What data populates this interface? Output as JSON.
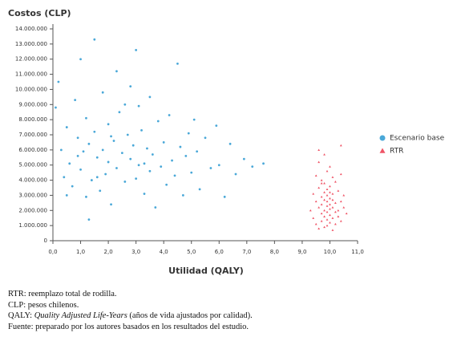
{
  "chart_data": {
    "type": "scatter",
    "title": "Costos (CLP)",
    "xlabel": "Utilidad (QALY)",
    "xlim": [
      0,
      11
    ],
    "ylim": [
      0,
      14000000
    ],
    "xticks": [
      {
        "value": 0,
        "label": "0,0"
      },
      {
        "value": 1,
        "label": "1,0"
      },
      {
        "value": 2,
        "label": "2,0"
      },
      {
        "value": 3,
        "label": "3,0"
      },
      {
        "value": 4,
        "label": "4,0"
      },
      {
        "value": 5,
        "label": "5,0"
      },
      {
        "value": 6,
        "label": "6,0"
      },
      {
        "value": 7,
        "label": "7,0"
      },
      {
        "value": 8,
        "label": "8,0"
      },
      {
        "value": 9,
        "label": "9,0"
      },
      {
        "value": 10,
        "label": "10,0"
      },
      {
        "value": 11,
        "label": "11,0"
      }
    ],
    "yticks": [
      0,
      {
        "value": 1000000,
        "label": "1.000.000"
      },
      {
        "value": 2000000,
        "label": "2.000.000"
      },
      {
        "value": 3000000,
        "label": "3.000.000"
      },
      {
        "value": 4000000,
        "label": "4.000.000"
      },
      {
        "value": 5000000,
        "label": "5.000.000"
      },
      {
        "value": 6000000,
        "label": "6.000.000"
      },
      {
        "value": 7000000,
        "label": "7.000.000"
      },
      {
        "value": 8000000,
        "label": "8.000.000"
      },
      {
        "value": 9000000,
        "label": "9.000.000"
      },
      {
        "value": 10000000,
        "label": "10.000.000"
      },
      {
        "value": 11000000,
        "label": "11.000.000"
      },
      {
        "value": 12000000,
        "label": "12.000.000"
      },
      {
        "value": 13000000,
        "label": "13.000.000"
      },
      {
        "value": 14000000,
        "label": "14.000.000"
      }
    ],
    "grid": false,
    "legend": "right",
    "series": [
      {
        "name": "Escenario base",
        "color": "#4aa8d8",
        "marker": "circle",
        "x": [
          0.1,
          0.2,
          0.3,
          0.4,
          0.5,
          0.6,
          0.7,
          0.8,
          0.9,
          1.0,
          1.0,
          1.1,
          1.2,
          1.2,
          1.3,
          1.4,
          1.5,
          1.5,
          1.6,
          1.7,
          1.8,
          1.8,
          1.9,
          2.0,
          2.0,
          2.1,
          2.2,
          2.3,
          2.3,
          2.4,
          2.5,
          2.6,
          2.7,
          2.8,
          2.8,
          2.9,
          3.0,
          3.1,
          3.1,
          3.2,
          3.3,
          3.4,
          3.5,
          3.5,
          3.6,
          3.7,
          3.8,
          3.9,
          4.0,
          4.1,
          4.2,
          4.3,
          4.4,
          4.5,
          4.6,
          4.7,
          4.8,
          4.9,
          5.0,
          5.1,
          5.2,
          5.3,
          5.5,
          5.7,
          5.9,
          6.0,
          6.2,
          6.4,
          6.6,
          6.9,
          7.2,
          7.6,
          0.5,
          1.3,
          2.6,
          3.0,
          0.9,
          1.6,
          2.1,
          3.3
        ],
        "values": [
          8800000,
          10500000,
          6000000,
          4200000,
          7500000,
          5100000,
          3600000,
          9300000,
          6800000,
          12000000,
          4700000,
          5900000,
          8100000,
          2900000,
          6400000,
          4000000,
          13300000,
          7200000,
          5500000,
          3300000,
          9800000,
          6000000,
          4400000,
          7700000,
          5200000,
          2400000,
          6600000,
          11200000,
          4800000,
          8500000,
          5800000,
          3900000,
          7000000,
          10200000,
          5400000,
          6300000,
          4100000,
          8900000,
          5000000,
          7300000,
          3100000,
          6100000,
          9500000,
          4600000,
          5700000,
          2200000,
          7900000,
          4900000,
          6500000,
          3700000,
          8300000,
          5300000,
          4300000,
          11700000,
          6200000,
          3000000,
          5600000,
          7100000,
          4500000,
          8000000,
          5900000,
          3400000,
          6800000,
          4800000,
          7600000,
          5000000,
          2900000,
          6400000,
          4400000,
          5400000,
          4900000,
          5100000,
          3000000,
          1400000,
          9000000,
          12600000,
          5600000,
          4200000,
          6900000,
          5100000
        ]
      },
      {
        "name": "RTR",
        "color": "#ef5466",
        "marker": "triangle",
        "x": [
          9.3,
          9.4,
          9.4,
          9.5,
          9.5,
          9.5,
          9.6,
          9.6,
          9.6,
          9.6,
          9.7,
          9.7,
          9.7,
          9.7,
          9.7,
          9.8,
          9.8,
          9.8,
          9.8,
          9.8,
          9.8,
          9.8,
          9.9,
          9.9,
          9.9,
          9.9,
          9.9,
          9.9,
          9.9,
          10.0,
          10.0,
          10.0,
          10.0,
          10.0,
          10.0,
          10.0,
          10.1,
          10.1,
          10.1,
          10.1,
          10.1,
          10.2,
          10.2,
          10.2,
          10.2,
          10.3,
          10.3,
          10.3,
          10.4,
          10.4,
          10.4,
          10.5,
          10.5,
          10.6,
          9.6,
          10.4,
          9.7,
          9.9,
          10.0,
          10.1
        ],
        "values": [
          2000000,
          3100000,
          1500000,
          2600000,
          4300000,
          1100000,
          2200000,
          3500000,
          800000,
          5200000,
          1800000,
          2900000,
          4000000,
          1300000,
          2400000,
          3200000,
          1600000,
          2000000,
          5700000,
          2700000,
          900000,
          3800000,
          2300000,
          1400000,
          3000000,
          4600000,
          1900000,
          2600000,
          3400000,
          2100000,
          1200000,
          2800000,
          3600000,
          1700000,
          4900000,
          2400000,
          1500000,
          2200000,
          3100000,
          700000,
          2700000,
          1900000,
          3900000,
          2500000,
          1100000,
          2000000,
          3300000,
          1600000,
          2600000,
          4400000,
          1300000,
          2200000,
          3000000,
          1800000,
          6000000,
          6300000,
          3800000,
          1000000,
          3200000,
          4200000
        ]
      }
    ],
    "notes": [
      "RTR: reemplazo total de rodilla.",
      "CLP: pesos chilenos.",
      {
        "prefix": "QALY:",
        "italic": "Quality Adjusted Life-Years",
        "suffix": "(años de vida ajustados por calidad)."
      },
      "Fuente: preparado por los autores basados en los resultados del estudio."
    ]
  }
}
